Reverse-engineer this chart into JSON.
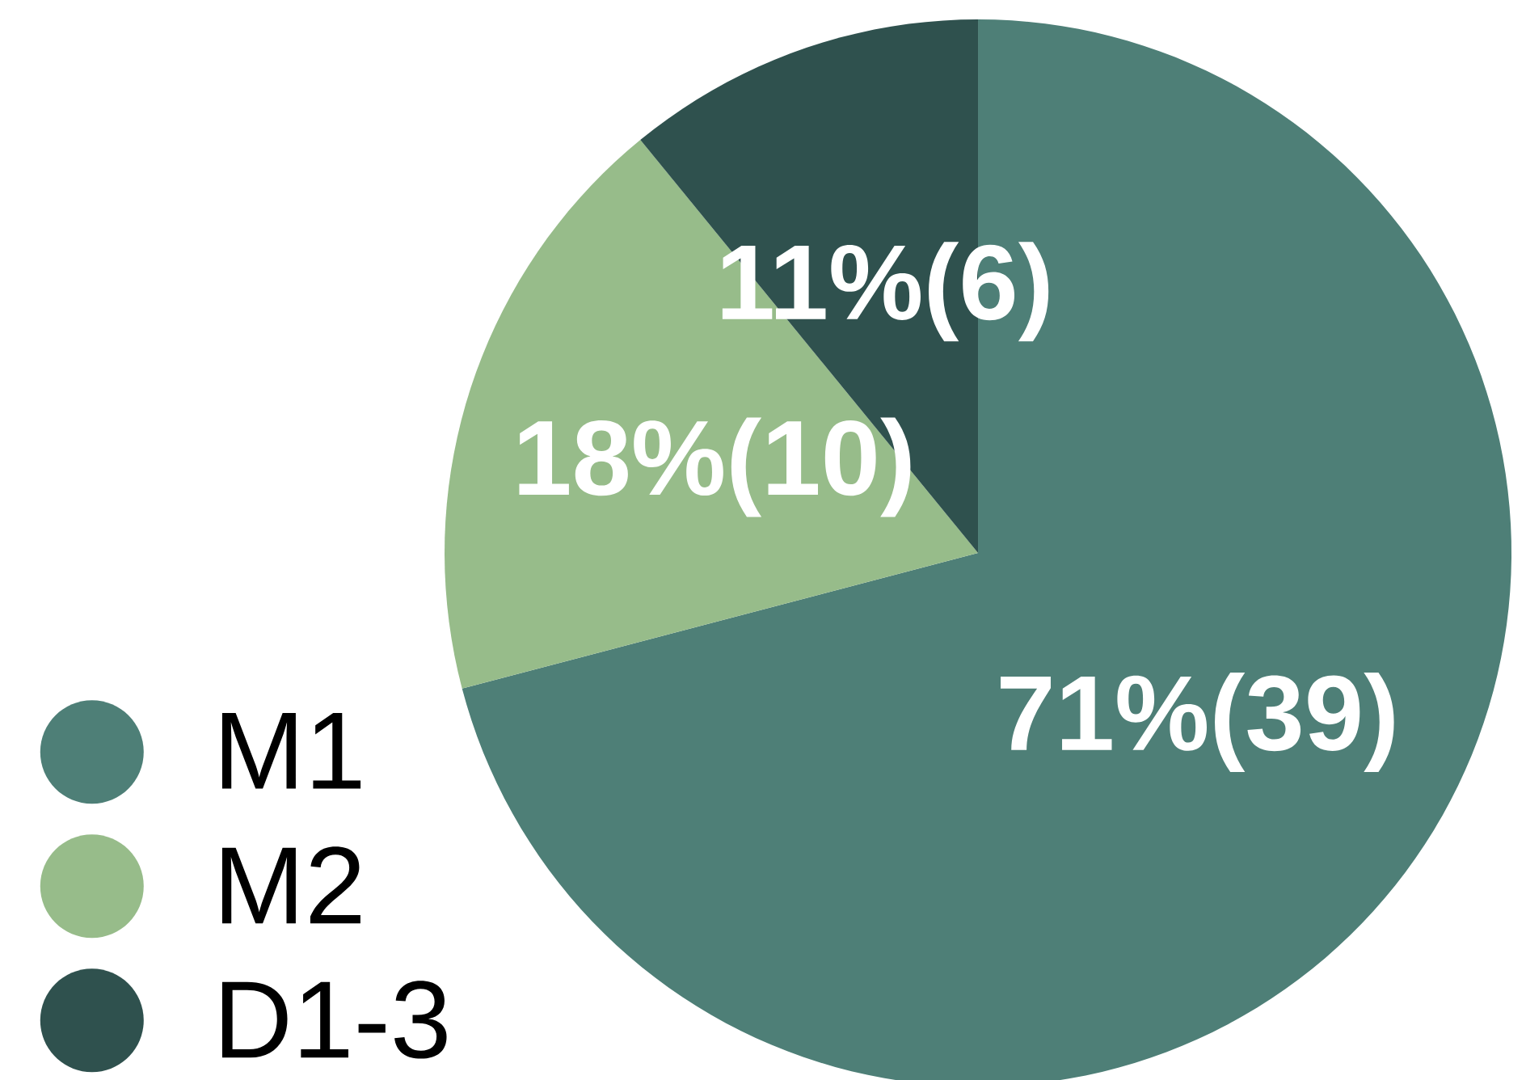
{
  "chart_data": {
    "type": "pie",
    "categories": [
      "M1",
      "M2",
      "D1-3"
    ],
    "values": [
      39,
      10,
      6
    ],
    "colors": [
      "#4e7f77",
      "#97bc8a",
      "#2f514e"
    ],
    "value_labels": [
      "71%(39)",
      "18%(10)",
      "11%(6)"
    ],
    "legend": "bottom left"
  }
}
